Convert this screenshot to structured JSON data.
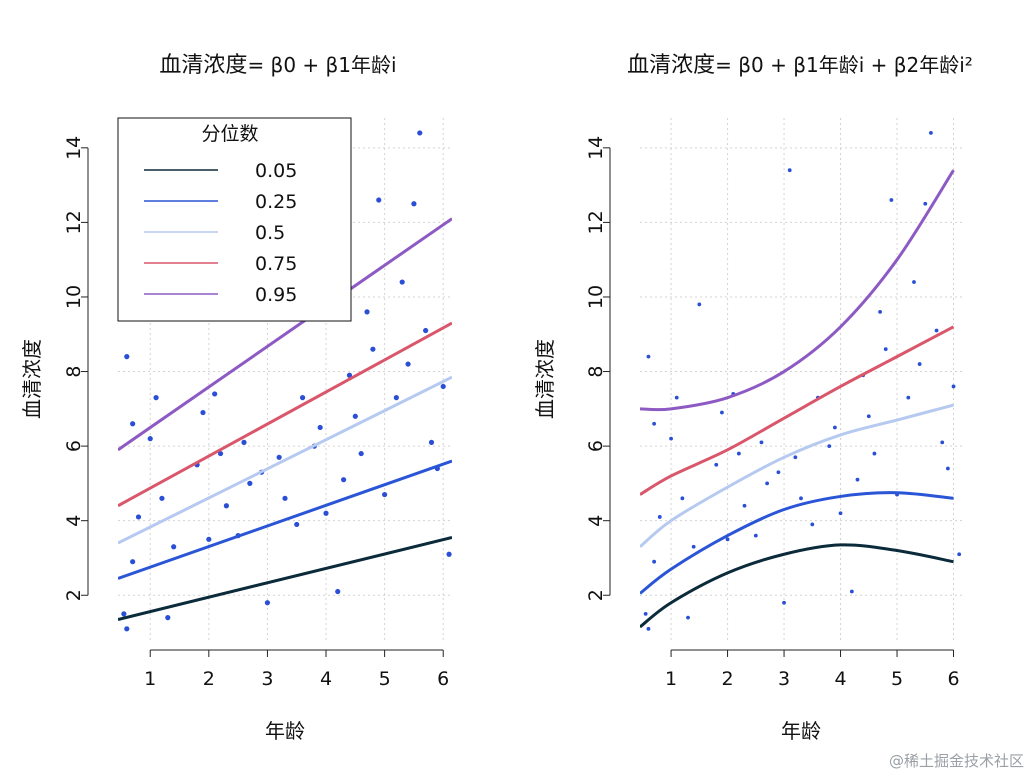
{
  "chart_data": [
    {
      "type": "scatter",
      "title_text": "血清浓度",
      "title_model": "= β0 + β1年龄i",
      "xlabel": "年龄",
      "ylabel": "血清浓度",
      "xlim": [
        0.45,
        6.15
      ],
      "ylim": [
        0.8,
        14.8
      ],
      "x_ticks": [
        1,
        2,
        3,
        4,
        5,
        6
      ],
      "y_ticks": [
        2,
        4,
        6,
        8,
        10,
        12,
        14
      ],
      "grid": true,
      "legend": {
        "title": "分位数",
        "position": "top-left",
        "entries": [
          {
            "label": "0.05",
            "color": "#0b2a3a"
          },
          {
            "label": "0.25",
            "color": "#2a55d6"
          },
          {
            "label": "0.5",
            "color": "#b6c9f0"
          },
          {
            "label": "0.75",
            "color": "#d9566b"
          },
          {
            "label": "0.95",
            "color": "#8d5ac4"
          }
        ]
      },
      "series": [
        {
          "name": "0.05",
          "color": "#0b2a3a",
          "x": [
            0.45,
            6.15
          ],
          "y": [
            1.35,
            3.55
          ]
        },
        {
          "name": "0.25",
          "color": "#2a55d6",
          "x": [
            0.45,
            6.15
          ],
          "y": [
            2.45,
            5.6
          ]
        },
        {
          "name": "0.5",
          "color": "#b6c9f0",
          "x": [
            0.45,
            6.15
          ],
          "y": [
            3.4,
            7.85
          ]
        },
        {
          "name": "0.75",
          "color": "#d9566b",
          "x": [
            0.45,
            6.15
          ],
          "y": [
            4.4,
            9.3
          ]
        },
        {
          "name": "0.95",
          "color": "#8d5ac4",
          "x": [
            0.45,
            6.15
          ],
          "y": [
            5.9,
            12.1
          ]
        }
      ],
      "points": [
        [
          0.6,
          8.4
        ],
        [
          0.7,
          6.6
        ],
        [
          1.0,
          6.2
        ],
        [
          0.6,
          1.1
        ],
        [
          0.55,
          1.5
        ],
        [
          1.3,
          1.4
        ],
        [
          1.5,
          9.8
        ],
        [
          0.8,
          4.1
        ],
        [
          1.2,
          4.6
        ],
        [
          1.1,
          7.3
        ],
        [
          0.7,
          2.9
        ],
        [
          1.4,
          3.3
        ],
        [
          1.8,
          5.5
        ],
        [
          1.9,
          6.9
        ],
        [
          2.2,
          5.8
        ],
        [
          2.0,
          3.5
        ],
        [
          2.3,
          4.4
        ],
        [
          2.6,
          6.1
        ],
        [
          2.1,
          7.4
        ],
        [
          2.7,
          5.0
        ],
        [
          3.0,
          1.8
        ],
        [
          3.1,
          13.4
        ],
        [
          3.3,
          4.6
        ],
        [
          3.2,
          5.7
        ],
        [
          3.6,
          7.3
        ],
        [
          3.9,
          6.5
        ],
        [
          3.5,
          3.9
        ],
        [
          4.0,
          4.2
        ],
        [
          4.3,
          5.1
        ],
        [
          4.4,
          7.9
        ],
        [
          4.2,
          2.1
        ],
        [
          4.5,
          6.8
        ],
        [
          4.6,
          5.8
        ],
        [
          4.8,
          8.6
        ],
        [
          4.9,
          12.6
        ],
        [
          5.0,
          4.7
        ],
        [
          5.2,
          7.3
        ],
        [
          5.5,
          12.5
        ],
        [
          5.6,
          14.4
        ],
        [
          5.7,
          9.1
        ],
        [
          5.8,
          6.1
        ],
        [
          6.0,
          7.6
        ],
        [
          5.9,
          5.4
        ],
        [
          6.1,
          3.1
        ],
        [
          5.4,
          8.2
        ],
        [
          5.3,
          10.4
        ],
        [
          4.7,
          9.6
        ],
        [
          3.8,
          6.0
        ],
        [
          2.9,
          5.3
        ],
        [
          2.5,
          3.6
        ]
      ]
    },
    {
      "type": "scatter",
      "title_text": "血清浓度",
      "title_model": "= β0 + β1年龄i + β2年龄i²",
      "xlabel": "年龄",
      "ylabel": "血清浓度",
      "xlim": [
        0.45,
        6.15
      ],
      "ylim": [
        0.8,
        14.8
      ],
      "x_ticks": [
        1,
        2,
        3,
        4,
        5,
        6
      ],
      "y_ticks": [
        2,
        4,
        6,
        8,
        10,
        12,
        14
      ],
      "grid": true,
      "series": [
        {
          "name": "0.05",
          "color": "#0b2a3a",
          "x": [
            0.45,
            1.0,
            2.0,
            3.0,
            4.0,
            5.0,
            6.0
          ],
          "y": [
            1.15,
            1.8,
            2.6,
            3.1,
            3.35,
            3.2,
            2.9
          ]
        },
        {
          "name": "0.25",
          "color": "#2a55d6",
          "x": [
            0.45,
            1.0,
            2.0,
            3.0,
            4.0,
            5.0,
            6.0
          ],
          "y": [
            2.05,
            2.7,
            3.6,
            4.3,
            4.65,
            4.75,
            4.6
          ]
        },
        {
          "name": "0.5",
          "color": "#b6c9f0",
          "x": [
            0.45,
            1.0,
            2.0,
            3.0,
            4.0,
            5.0,
            6.0
          ],
          "y": [
            3.3,
            4.0,
            4.9,
            5.7,
            6.3,
            6.7,
            7.1
          ]
        },
        {
          "name": "0.75",
          "color": "#d9566b",
          "x": [
            0.45,
            1.0,
            2.0,
            3.0,
            4.0,
            5.0,
            6.0
          ],
          "y": [
            4.7,
            5.2,
            5.9,
            6.75,
            7.6,
            8.4,
            9.2
          ]
        },
        {
          "name": "0.95",
          "color": "#8d5ac4",
          "x": [
            0.45,
            1.0,
            2.0,
            3.0,
            4.0,
            5.0,
            6.0
          ],
          "y": [
            7.0,
            7.0,
            7.3,
            8.0,
            9.2,
            11.0,
            13.4
          ]
        }
      ],
      "points": [
        [
          0.6,
          8.4
        ],
        [
          0.7,
          6.6
        ],
        [
          1.0,
          6.2
        ],
        [
          0.6,
          1.1
        ],
        [
          0.55,
          1.5
        ],
        [
          1.3,
          1.4
        ],
        [
          1.5,
          9.8
        ],
        [
          0.8,
          4.1
        ],
        [
          1.2,
          4.6
        ],
        [
          1.1,
          7.3
        ],
        [
          0.7,
          2.9
        ],
        [
          1.4,
          3.3
        ],
        [
          1.8,
          5.5
        ],
        [
          1.9,
          6.9
        ],
        [
          2.2,
          5.8
        ],
        [
          2.0,
          3.5
        ],
        [
          2.3,
          4.4
        ],
        [
          2.6,
          6.1
        ],
        [
          2.1,
          7.4
        ],
        [
          2.7,
          5.0
        ],
        [
          3.0,
          1.8
        ],
        [
          3.1,
          13.4
        ],
        [
          3.3,
          4.6
        ],
        [
          3.2,
          5.7
        ],
        [
          3.6,
          7.3
        ],
        [
          3.9,
          6.5
        ],
        [
          3.5,
          3.9
        ],
        [
          4.0,
          4.2
        ],
        [
          4.3,
          5.1
        ],
        [
          4.4,
          7.9
        ],
        [
          4.2,
          2.1
        ],
        [
          4.5,
          6.8
        ],
        [
          4.6,
          5.8
        ],
        [
          4.8,
          8.6
        ],
        [
          4.9,
          12.6
        ],
        [
          5.0,
          4.7
        ],
        [
          5.2,
          7.3
        ],
        [
          5.5,
          12.5
        ],
        [
          5.6,
          14.4
        ],
        [
          5.7,
          9.1
        ],
        [
          5.8,
          6.1
        ],
        [
          6.0,
          7.6
        ],
        [
          5.9,
          5.4
        ],
        [
          6.1,
          3.1
        ],
        [
          5.4,
          8.2
        ],
        [
          5.3,
          10.4
        ],
        [
          4.7,
          9.6
        ],
        [
          3.8,
          6.0
        ],
        [
          2.9,
          5.3
        ],
        [
          2.5,
          3.6
        ]
      ]
    }
  ],
  "watermark": "@稀土掘金技术社区"
}
